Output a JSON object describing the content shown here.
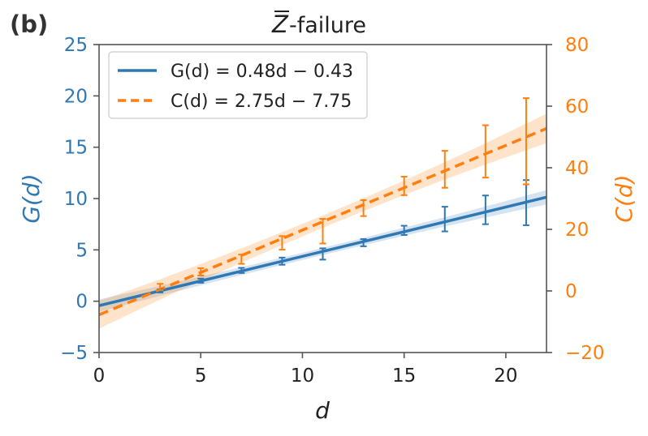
{
  "chart_data": {
    "type": "line",
    "panel_label": "(b)",
    "title_overbar": "Z",
    "title_rest": "-failure",
    "xlabel": "d",
    "ylabel_left": "G(d)",
    "ylabel_right": "C(d)",
    "xlim": [
      0,
      22
    ],
    "ylim_left": [
      -5,
      25
    ],
    "ylim_right": [
      -20,
      80
    ],
    "x_ticks": [
      0,
      5,
      10,
      15,
      20
    ],
    "y_ticks_left": [
      -5,
      0,
      5,
      10,
      15,
      20,
      25
    ],
    "y_ticks_right": [
      -20,
      0,
      20,
      40,
      60,
      80
    ],
    "x_tick_labels": [
      "0",
      "5",
      "10",
      "15",
      "20"
    ],
    "y_tick_labels_left": [
      "−5",
      "0",
      "5",
      "10",
      "15",
      "20",
      "25"
    ],
    "y_tick_labels_right": [
      "−20",
      "0",
      "20",
      "40",
      "60",
      "80"
    ],
    "grid": false,
    "legend_position": "top-left",
    "colors": {
      "G": "#2f78b4",
      "C": "#ff7f0e"
    },
    "series": [
      {
        "name": "G(d)",
        "legend": "G(d) = 0.48d − 0.43",
        "fit": {
          "slope": 0.48,
          "intercept": -0.43
        },
        "band_halfwidth": [
          0.6,
          0.35,
          0.7
        ],
        "x": [
          3,
          5,
          7,
          9,
          11,
          13,
          15,
          17,
          19,
          21
        ],
        "y": [
          1.0,
          2.0,
          3.0,
          3.9,
          4.6,
          5.7,
          6.9,
          8.0,
          8.9,
          9.6
        ],
        "err": [
          0.15,
          0.2,
          0.25,
          0.35,
          0.55,
          0.35,
          0.45,
          1.2,
          1.4,
          2.2
        ]
      },
      {
        "name": "C(d)",
        "legend": "C(d) = 2.75d − 7.75",
        "fit": {
          "slope": 2.75,
          "intercept": -7.75
        },
        "band_halfwidth": [
          4.5,
          2.0,
          4.8
        ],
        "x": [
          3,
          5,
          7,
          9,
          11,
          13,
          15,
          17,
          19,
          21
        ],
        "y": [
          1.3,
          6.2,
          10.3,
          15.6,
          19.4,
          26.9,
          34.1,
          39.5,
          45.3,
          48.6
        ],
        "err": [
          1.0,
          1.2,
          1.5,
          2.2,
          4.0,
          2.6,
          3.0,
          6.0,
          8.5,
          14.0
        ]
      }
    ]
  }
}
